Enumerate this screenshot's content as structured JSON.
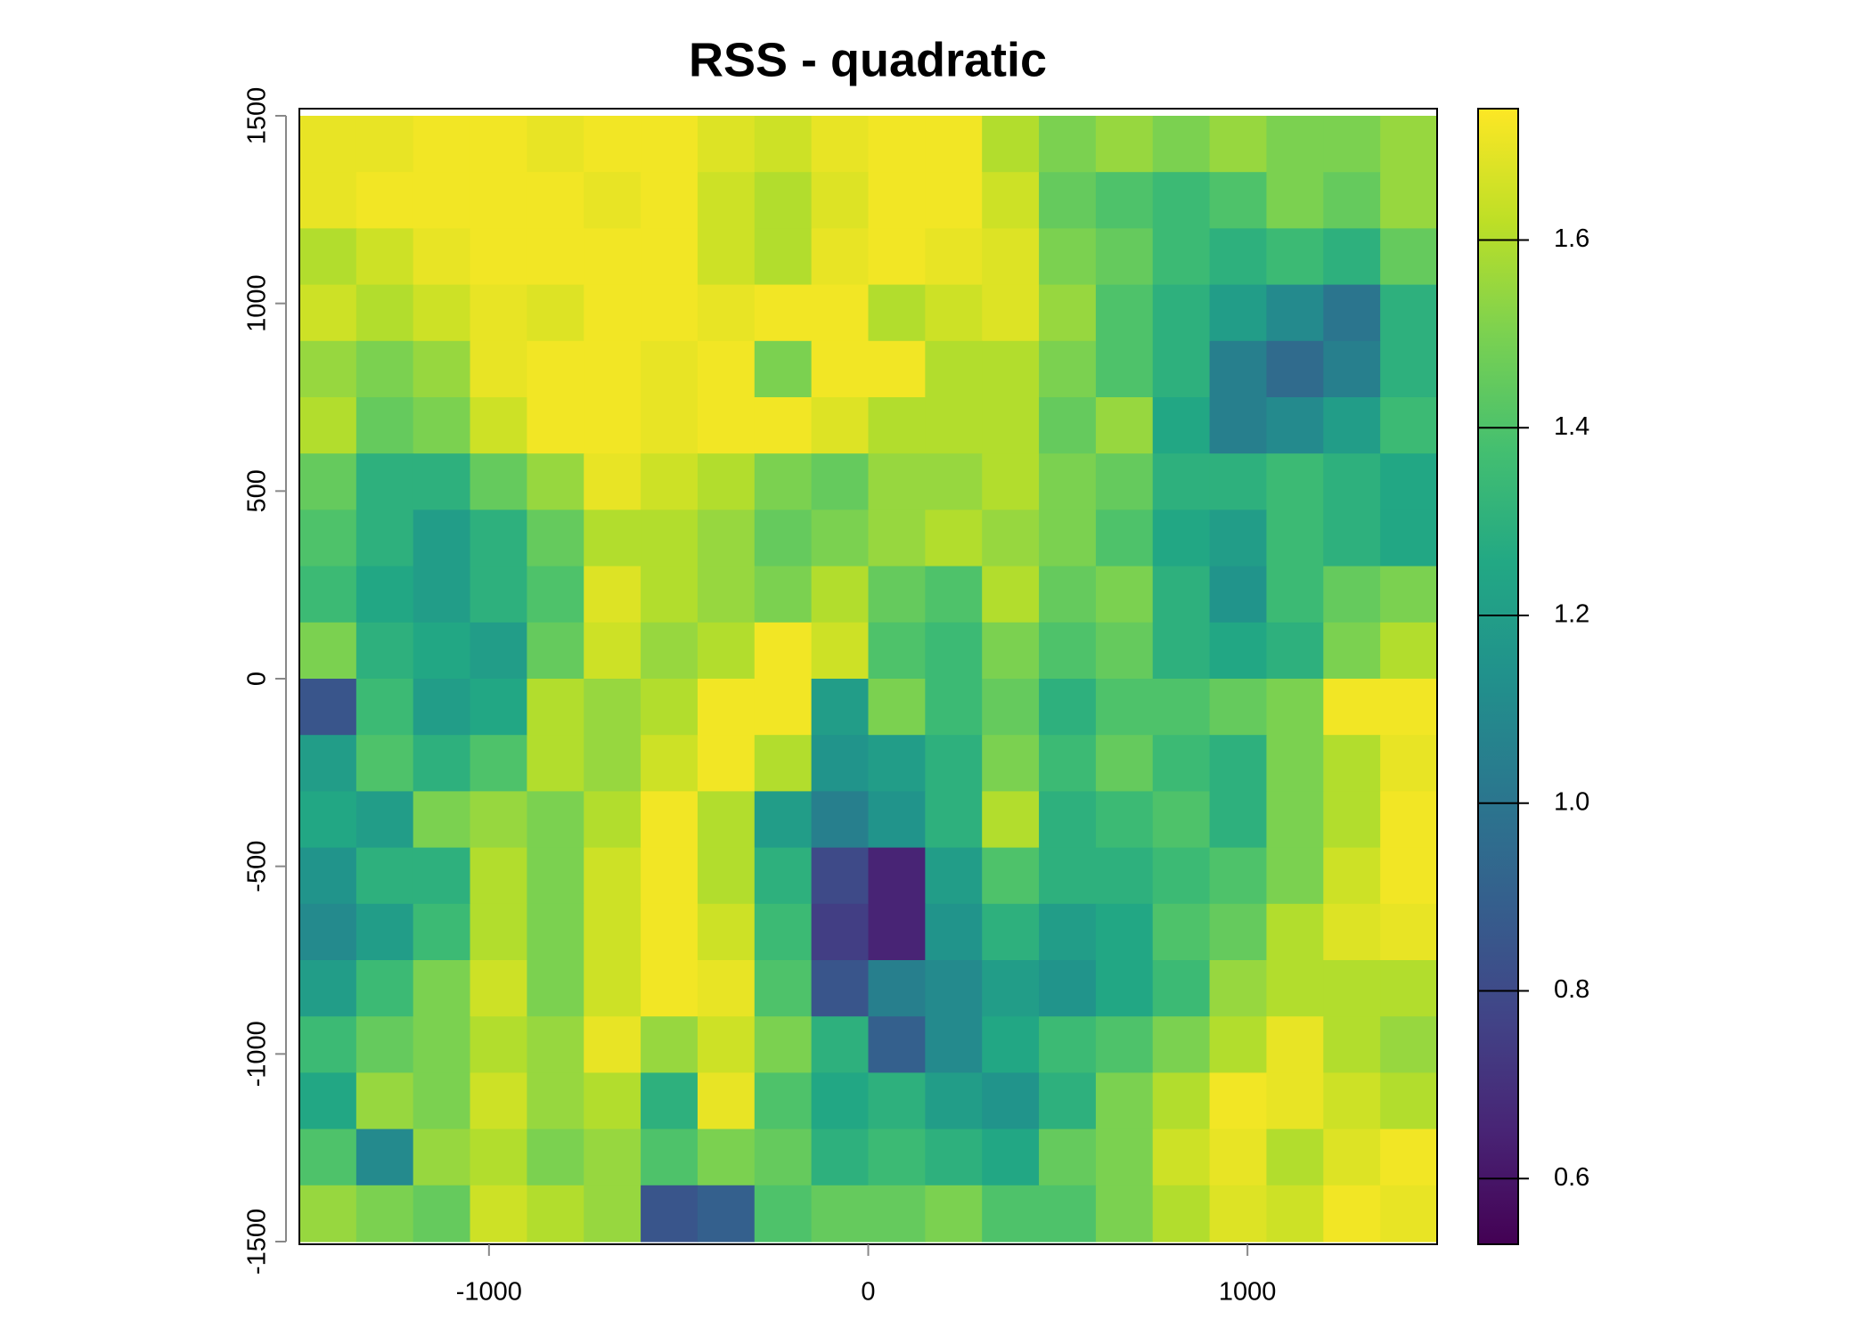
{
  "chart_data": {
    "type": "heatmap",
    "title": "RSS - quadratic",
    "colormap": "viridis",
    "xlim": [
      -1500,
      1500
    ],
    "ylim": [
      -1500,
      1500
    ],
    "xticks": [
      -1000,
      0,
      1000
    ],
    "yticks": [
      -1500,
      -1000,
      -500,
      0,
      500,
      1000,
      1500
    ],
    "zlim": [
      0.53,
      1.74
    ],
    "zticks": [
      0.6,
      0.8,
      {
        "value": 1,
        "label": "1.0"
      },
      1.2,
      1.4,
      1.6
    ],
    "x": [
      -1425,
      -1275,
      -1125,
      -975,
      -825,
      -675,
      -525,
      -375,
      -225,
      -75,
      75,
      225,
      375,
      525,
      675,
      825,
      975,
      1125,
      1275,
      1425
    ],
    "y": [
      1425,
      1275,
      1125,
      975,
      825,
      675,
      525,
      375,
      225,
      75,
      -75,
      -225,
      -375,
      -525,
      -675,
      -825,
      -975,
      -1125,
      -1275,
      -1425
    ],
    "z": [
      [
        1.7,
        1.7,
        1.72,
        1.72,
        1.7,
        1.72,
        1.72,
        1.68,
        1.65,
        1.7,
        1.72,
        1.72,
        1.6,
        1.5,
        1.55,
        1.5,
        1.55,
        1.5,
        1.5,
        1.55
      ],
      [
        1.7,
        1.72,
        1.72,
        1.72,
        1.72,
        1.7,
        1.72,
        1.65,
        1.6,
        1.68,
        1.72,
        1.72,
        1.65,
        1.45,
        1.4,
        1.35,
        1.4,
        1.5,
        1.45,
        1.55
      ],
      [
        1.6,
        1.65,
        1.7,
        1.72,
        1.72,
        1.72,
        1.72,
        1.65,
        1.6,
        1.7,
        1.72,
        1.7,
        1.68,
        1.5,
        1.45,
        1.35,
        1.3,
        1.35,
        1.3,
        1.45
      ],
      [
        1.65,
        1.6,
        1.65,
        1.7,
        1.68,
        1.72,
        1.72,
        1.7,
        1.72,
        1.72,
        1.6,
        1.65,
        1.68,
        1.55,
        1.4,
        1.3,
        1.2,
        1.1,
        1.0,
        1.3
      ],
      [
        1.55,
        1.5,
        1.55,
        1.7,
        1.72,
        1.72,
        1.7,
        1.72,
        1.5,
        1.72,
        1.72,
        1.6,
        1.6,
        1.5,
        1.4,
        1.3,
        1.05,
        0.95,
        1.05,
        1.3
      ],
      [
        1.6,
        1.45,
        1.5,
        1.65,
        1.72,
        1.72,
        1.7,
        1.72,
        1.72,
        1.68,
        1.6,
        1.6,
        1.6,
        1.45,
        1.55,
        1.25,
        1.05,
        1.1,
        1.2,
        1.35
      ],
      [
        1.45,
        1.3,
        1.3,
        1.45,
        1.55,
        1.7,
        1.65,
        1.6,
        1.5,
        1.45,
        1.55,
        1.55,
        1.6,
        1.5,
        1.45,
        1.3,
        1.3,
        1.35,
        1.3,
        1.25
      ],
      [
        1.4,
        1.3,
        1.2,
        1.3,
        1.45,
        1.6,
        1.6,
        1.55,
        1.45,
        1.5,
        1.55,
        1.6,
        1.55,
        1.5,
        1.4,
        1.25,
        1.2,
        1.35,
        1.3,
        1.25
      ],
      [
        1.35,
        1.25,
        1.2,
        1.3,
        1.4,
        1.68,
        1.6,
        1.55,
        1.5,
        1.6,
        1.45,
        1.4,
        1.6,
        1.45,
        1.5,
        1.3,
        1.15,
        1.35,
        1.45,
        1.5
      ],
      [
        1.5,
        1.3,
        1.25,
        1.2,
        1.45,
        1.65,
        1.55,
        1.6,
        1.72,
        1.65,
        1.4,
        1.35,
        1.5,
        1.4,
        1.45,
        1.3,
        1.25,
        1.3,
        1.5,
        1.6
      ],
      [
        0.85,
        1.35,
        1.2,
        1.25,
        1.6,
        1.55,
        1.6,
        1.72,
        1.72,
        1.2,
        1.5,
        1.35,
        1.45,
        1.3,
        1.4,
        1.4,
        1.45,
        1.5,
        1.72,
        1.72
      ],
      [
        1.2,
        1.4,
        1.3,
        1.4,
        1.6,
        1.55,
        1.65,
        1.72,
        1.6,
        1.15,
        1.2,
        1.3,
        1.5,
        1.35,
        1.45,
        1.35,
        1.3,
        1.5,
        1.6,
        1.7
      ],
      [
        1.25,
        1.2,
        1.5,
        1.55,
        1.5,
        1.6,
        1.72,
        1.6,
        1.2,
        1.05,
        1.15,
        1.3,
        1.6,
        1.3,
        1.35,
        1.4,
        1.3,
        1.5,
        1.6,
        1.72
      ],
      [
        1.15,
        1.3,
        1.3,
        1.6,
        1.5,
        1.65,
        1.72,
        1.6,
        1.3,
        0.8,
        0.65,
        1.2,
        1.4,
        1.3,
        1.3,
        1.35,
        1.4,
        1.5,
        1.65,
        1.72
      ],
      [
        1.1,
        1.2,
        1.35,
        1.6,
        1.5,
        1.65,
        1.72,
        1.65,
        1.35,
        0.75,
        0.65,
        1.15,
        1.3,
        1.2,
        1.25,
        1.4,
        1.45,
        1.6,
        1.68,
        1.7
      ],
      [
        1.2,
        1.35,
        1.5,
        1.65,
        1.5,
        1.65,
        1.72,
        1.7,
        1.4,
        0.85,
        1.05,
        1.1,
        1.2,
        1.15,
        1.25,
        1.35,
        1.55,
        1.6,
        1.6,
        1.6
      ],
      [
        1.35,
        1.45,
        1.5,
        1.6,
        1.55,
        1.7,
        1.55,
        1.65,
        1.5,
        1.3,
        0.9,
        1.1,
        1.25,
        1.35,
        1.4,
        1.5,
        1.6,
        1.7,
        1.6,
        1.55
      ],
      [
        1.25,
        1.55,
        1.5,
        1.65,
        1.55,
        1.6,
        1.3,
        1.7,
        1.4,
        1.25,
        1.3,
        1.2,
        1.15,
        1.3,
        1.5,
        1.6,
        1.72,
        1.7,
        1.65,
        1.6
      ],
      [
        1.4,
        1.1,
        1.55,
        1.6,
        1.5,
        1.55,
        1.4,
        1.5,
        1.45,
        1.3,
        1.35,
        1.3,
        1.25,
        1.45,
        1.5,
        1.65,
        1.7,
        1.6,
        1.68,
        1.72
      ],
      [
        1.55,
        1.5,
        1.45,
        1.65,
        1.6,
        1.55,
        0.85,
        0.9,
        1.4,
        1.45,
        1.45,
        1.5,
        1.4,
        1.4,
        1.5,
        1.6,
        1.68,
        1.65,
        1.72,
        1.7
      ]
    ]
  }
}
